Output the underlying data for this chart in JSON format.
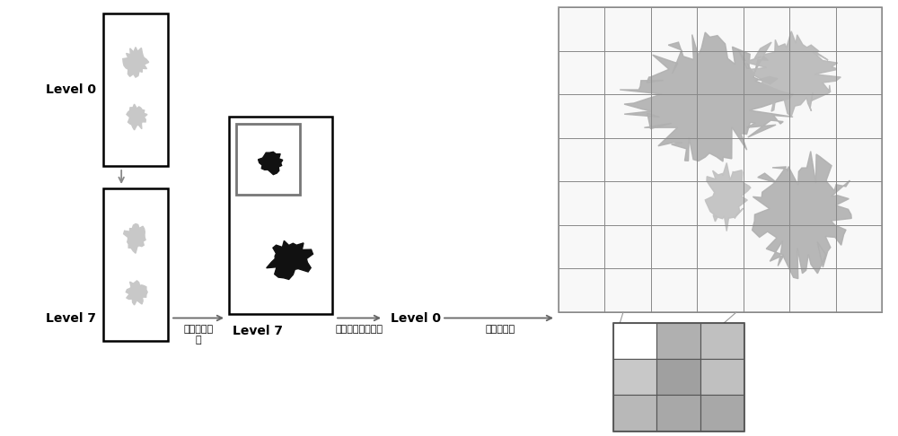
{
  "bg_color": "#ffffff",
  "label0_text": "Level 0",
  "label7_text": "Level 7",
  "label7b_text": "Level 7",
  "label0b_text": "Level 0",
  "step1_label": "大津阀値分\n割",
  "step2_label": "取得组织边缘区域",
  "step3_label": "切分为切块",
  "font_size_label": 10,
  "font_size_step": 8,
  "arrow_color": "#666666",
  "box_color": "#000000",
  "inner_box_color": "#777777",
  "grid_color": "#888888",
  "tissue_color_light": "#b8b8b8",
  "tissue_color_dark": "#909090",
  "tile_colors": [
    [
      "#ffffff",
      "#b0b0b0",
      "#c0c0c0"
    ],
    [
      "#c8c8c8",
      "#a0a0a0",
      "#c0c0c0"
    ],
    [
      "#b8b8b8",
      "#a8a8a8",
      "#a8a8a8"
    ]
  ],
  "grid_cols": 7,
  "grid_rows": 7
}
